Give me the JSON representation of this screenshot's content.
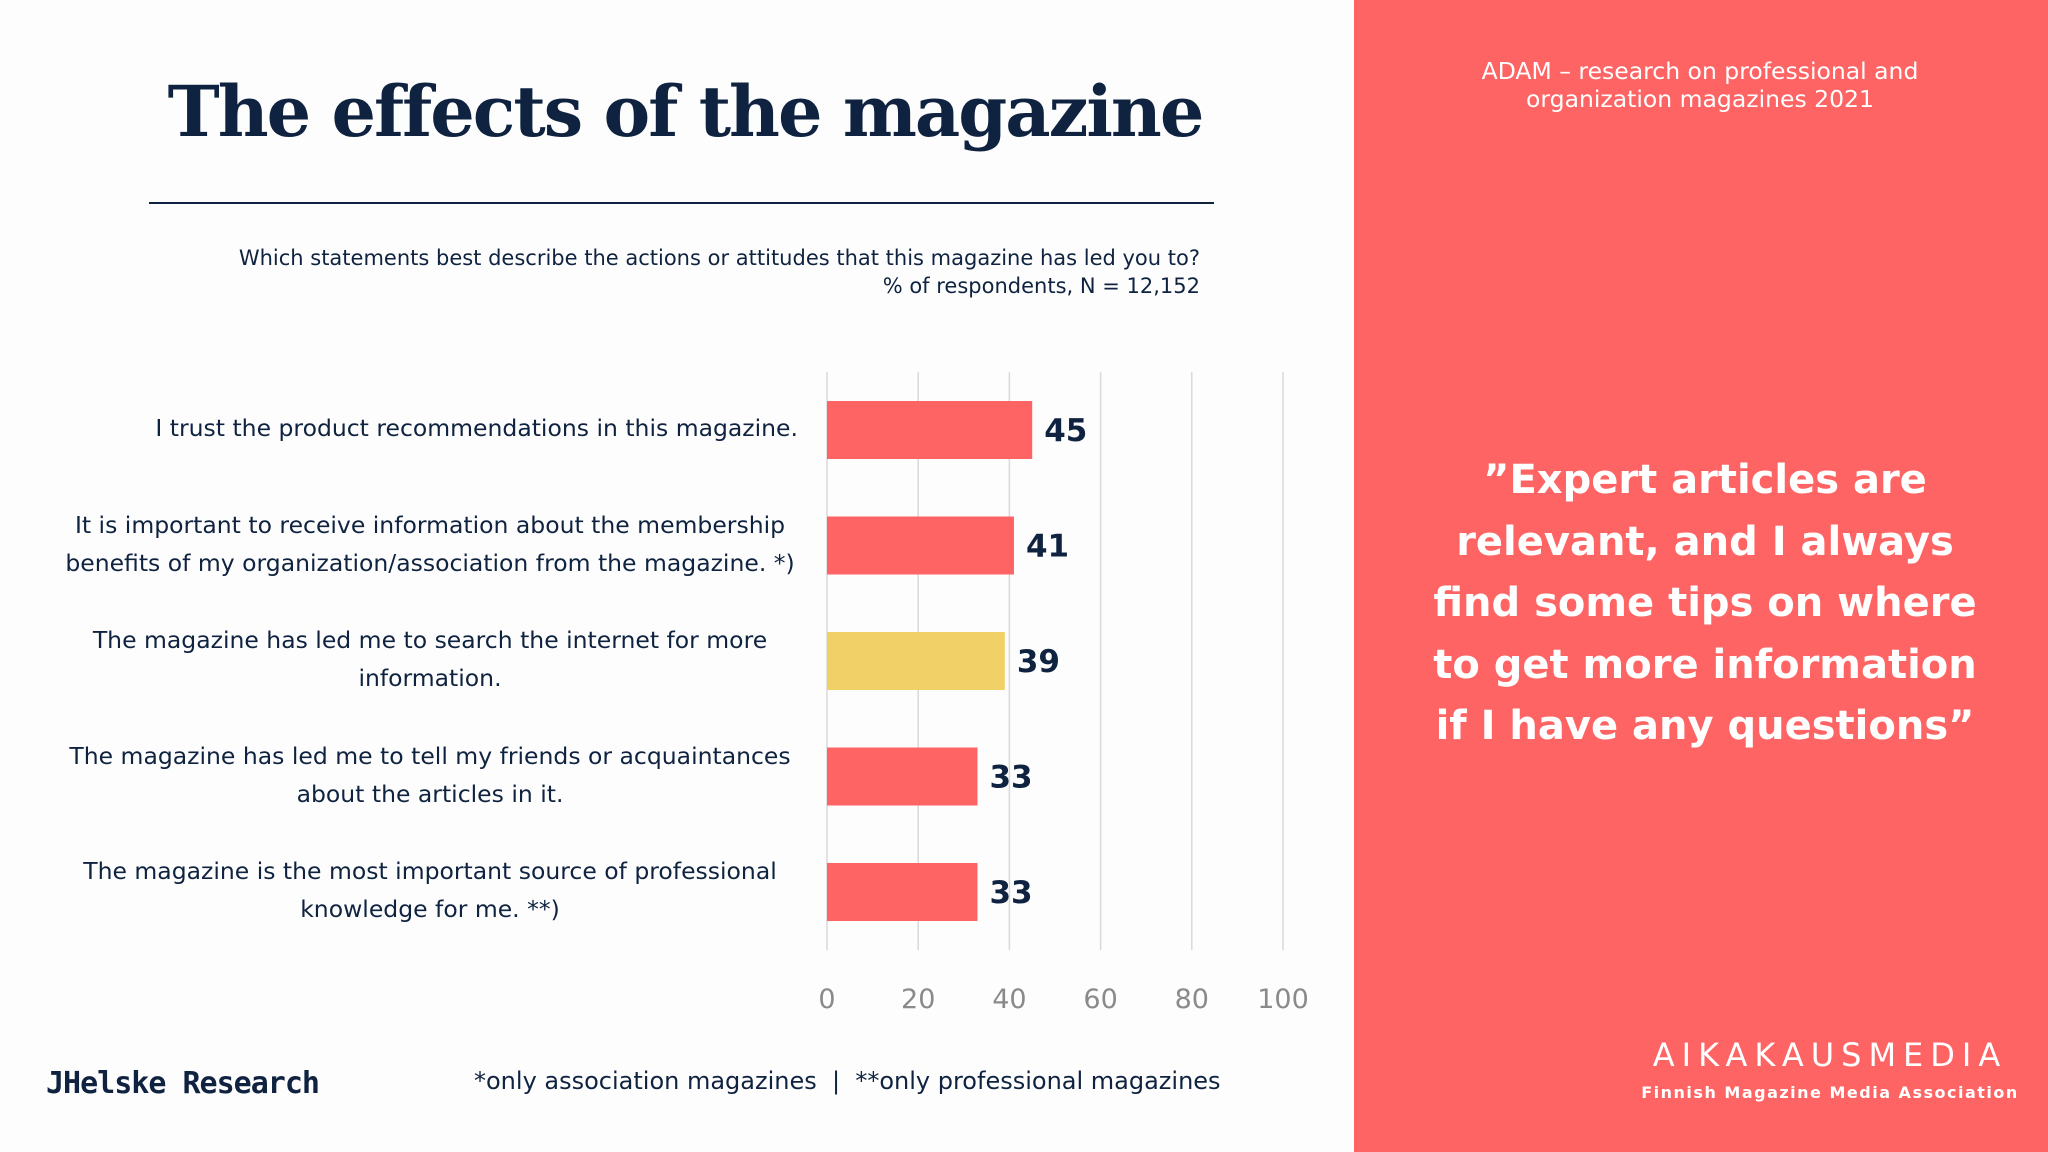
{
  "header": {
    "title": "The effects of the magazine",
    "question": "Which statements best describe the actions or attitudes that this magazine has led you to?",
    "base": "% of respondents, N = 12,152"
  },
  "chart_data": {
    "type": "bar",
    "orientation": "horizontal",
    "categories": [
      [
        "I trust the product recommendations in this magazine."
      ],
      [
        "It is important to receive information about the membership",
        "benefits of my organization/association from the magazine. *)"
      ],
      [
        "The magazine has led me to search the internet for more",
        "information."
      ],
      [
        "The magazine has led me to tell my friends or acquaintances",
        "about the articles in it."
      ],
      [
        "The magazine is the most important source of professional",
        "knowledge for me. **)"
      ]
    ],
    "values": [
      45,
      41,
      39,
      33,
      33
    ],
    "data_labels": [
      "45",
      "41",
      "39",
      "33",
      "33"
    ],
    "bar_colors": [
      "#fe6464",
      "#fe6464",
      "#f2d068",
      "#fe6464",
      "#fe6464"
    ],
    "xlim": [
      0,
      100
    ],
    "xticks": [
      0,
      20,
      40,
      60,
      80,
      100
    ],
    "grid": "vertical",
    "title": "",
    "xlabel": "",
    "ylabel": ""
  },
  "footer": {
    "footnote": "*only association magazines  |  **only professional magazines",
    "logo_left": "JHelske Research"
  },
  "side_panel": {
    "study": [
      "ADAM – research on professional and",
      "organization magazines 2021"
    ],
    "quote": [
      "”Expert articles are",
      "relevant, and I always",
      "find some tips on where",
      "to get more information",
      "if I have any questions”"
    ],
    "org_logo": "AIKAKAUSMEDIA",
    "org_sub": "Finnish Magazine Media Association"
  },
  "colors": {
    "accent": "#fe6464",
    "highlight": "#f2d068",
    "navy": "#0f2340",
    "grid": "#d9d9d9",
    "tick": "#8a8a8a"
  }
}
